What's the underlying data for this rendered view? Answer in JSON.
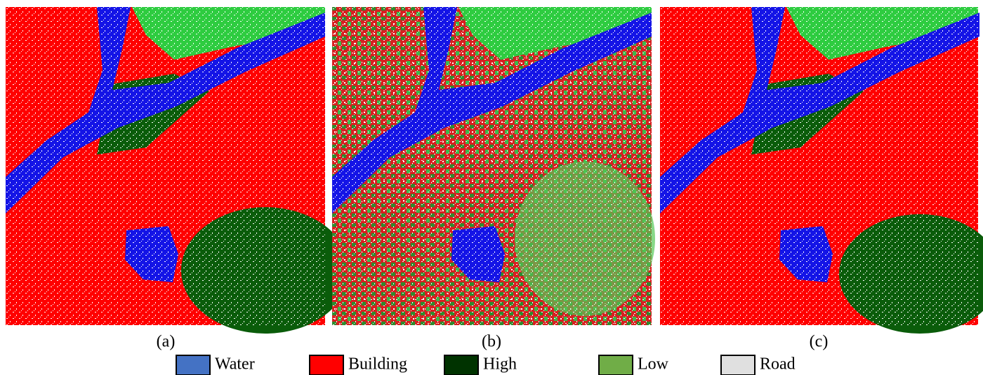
{
  "panels": [
    {
      "label": "(a)"
    },
    {
      "label": "(b)"
    },
    {
      "label": "(c)"
    }
  ],
  "legend": [
    {
      "name": "Water",
      "color": "#4472c4"
    },
    {
      "name": "Building",
      "color": "#ff0000"
    },
    {
      "name": "High",
      "color": "#003300"
    },
    {
      "name": "Low",
      "color": "#70ad47"
    },
    {
      "name": "Road",
      "color": "#e0e0e0"
    }
  ]
}
